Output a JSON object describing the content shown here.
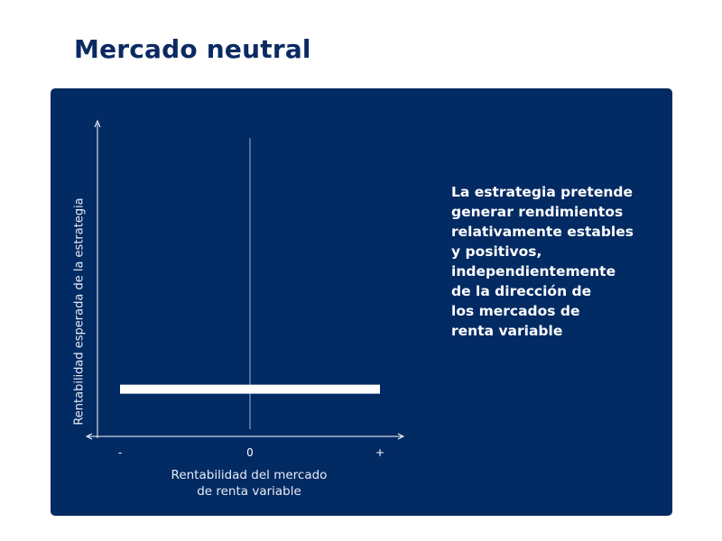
{
  "page": {
    "title": "Mercado neutral"
  },
  "description_lines": [
    "La estrategia pretende",
    "generar rendimientos",
    "relativamente estables",
    "y positivos,",
    "independientemente",
    "de la dirección de",
    "los mercados de",
    "renta variable"
  ],
  "colors": {
    "title": "#0b2a63",
    "panel": "#022a63",
    "line": "#ffffff",
    "axis": "#ffffff"
  },
  "chart_data": {
    "type": "line",
    "title": "",
    "xlabel_lines": [
      "Rentabilidad del mercado",
      "de renta variable"
    ],
    "ylabel": "Rentabilidad esperada de la estrategia",
    "xtick_labels": [
      "-",
      "0",
      "+"
    ],
    "xlim": [
      -1,
      1
    ],
    "ylim": [
      0,
      1
    ],
    "series": [
      {
        "x": [
          -1,
          1
        ],
        "y": [
          0.15,
          0.15
        ]
      }
    ],
    "reference_line_x": 0,
    "grid": false,
    "legend": "none"
  }
}
